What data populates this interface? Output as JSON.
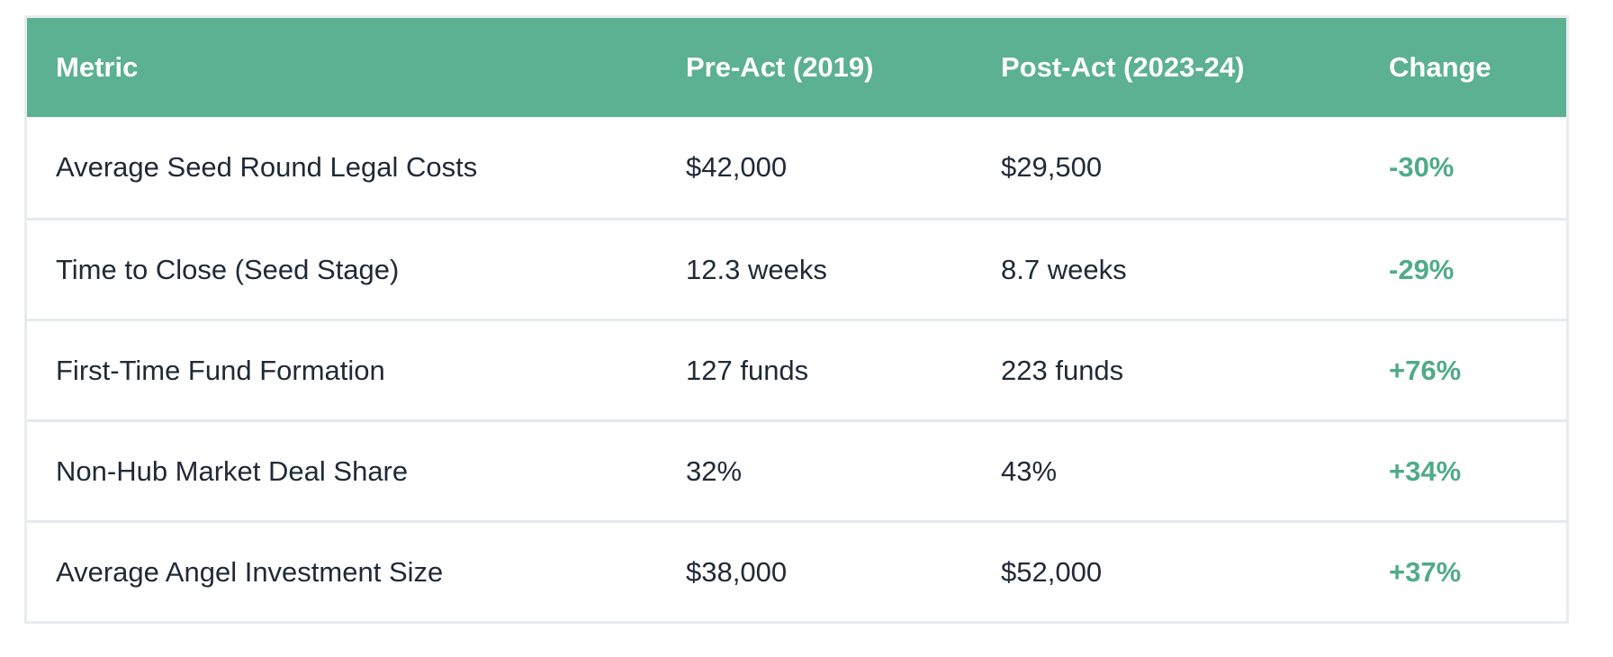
{
  "chart_data": {
    "type": "table",
    "title": "",
    "columns": [
      "Metric",
      "Pre-Act (2019)",
      "Post-Act (2023-24)",
      "Change"
    ],
    "rows": [
      [
        "Average Seed Round Legal Costs",
        "$42,000",
        "$29,500",
        "-30%"
      ],
      [
        "Time to Close (Seed Stage)",
        "12.3 weeks",
        "8.7 weeks",
        "-29%"
      ],
      [
        "First-Time Fund Formation",
        "127 funds",
        "223 funds",
        "+76%"
      ],
      [
        "Non-Hub Market Deal Share",
        "32%",
        "43%",
        "+34%"
      ],
      [
        "Average Angel Investment Size",
        "$38,000",
        "$52,000",
        "+37%"
      ]
    ],
    "layout": {
      "header_alignment": "left",
      "cell_alignment": "left",
      "grid": "horizontal-rules-only"
    }
  },
  "colors": {
    "header_bg": "#5bb191",
    "header_text": "#ffffff",
    "body_text": "#1f2a37",
    "change_text": "#50ab88",
    "row_divider": "#e4e9f0",
    "table_border": "#e7ecf1",
    "page_bg": "#ffffff"
  }
}
